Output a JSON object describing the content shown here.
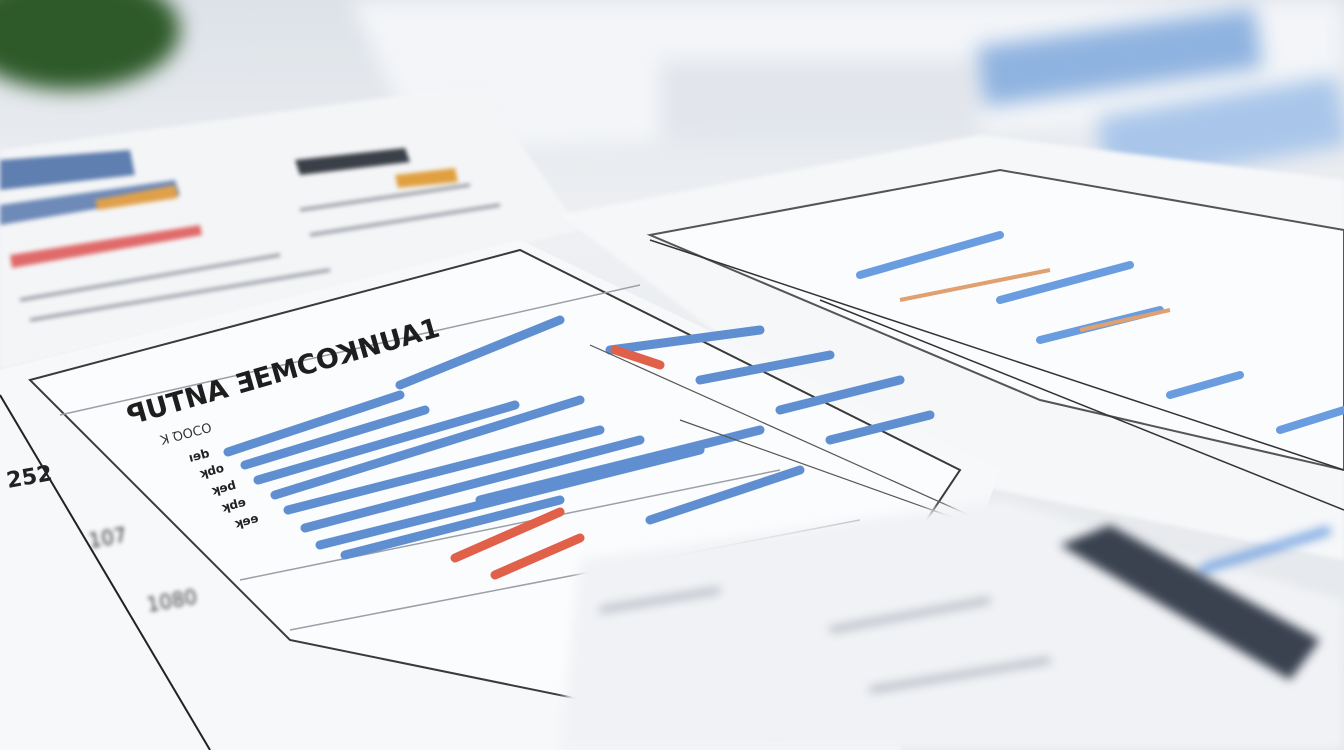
{
  "scene": {
    "description_colors": {
      "paper": "#f7f8fa",
      "bar_blue": "#5f8fd0",
      "bar_red": "#e0604a",
      "ink": "#1e1e1e",
      "plant": "#2e5a2a"
    },
    "main_chart": {
      "title": "ꟼUTNA ƎEMCOꓘNUA1",
      "subtitle": "ꓘ ꝹOCO",
      "side_numbers": [
        "252",
        "107",
        "1080"
      ],
      "row_labels": [
        "ıɘb",
        "ʞdo",
        "ʞɘd",
        "ʞdɘ",
        "ʞɘɘ"
      ]
    }
  }
}
